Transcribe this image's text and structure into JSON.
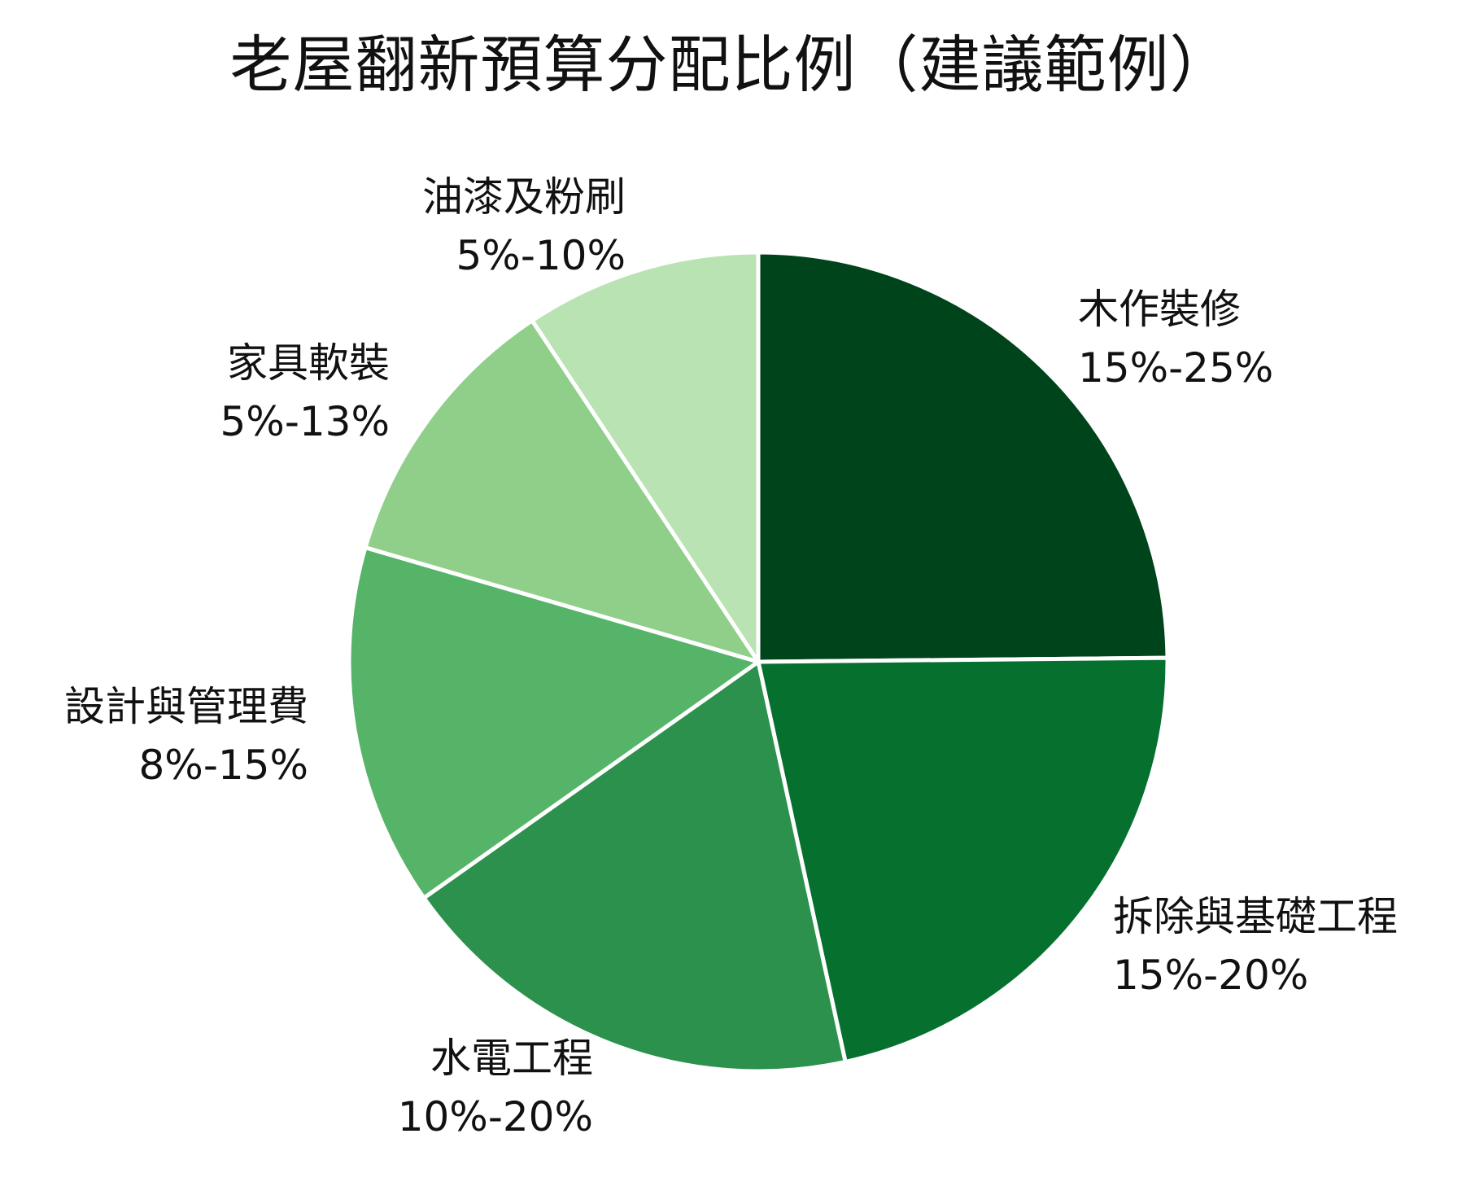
{
  "chart_data": {
    "type": "pie",
    "title": "老屋翻新預算分配比例（建議範例）",
    "slices": [
      {
        "label": "木作裝修",
        "range": "15%-25%",
        "value": 20,
        "color": "#00441b"
      },
      {
        "label": "拆除與基礎工程",
        "range": "15%-20%",
        "value": 17.5,
        "color": "#06702f"
      },
      {
        "label": "水電工程",
        "range": "10%-20%",
        "value": 15,
        "color": "#2c914c"
      },
      {
        "label": "設計與管理費",
        "range": "8%-15%",
        "value": 11.5,
        "color": "#56b469"
      },
      {
        "label": "家具軟裝",
        "range": "5%-13%",
        "value": 9,
        "color": "#8fcf8a"
      },
      {
        "label": "油漆及粉刷",
        "range": "5%-10%",
        "value": 7.5,
        "color": "#b9e3b2"
      }
    ],
    "start_angle": "12 o'clock",
    "direction": "clockwise",
    "legend": "none"
  }
}
